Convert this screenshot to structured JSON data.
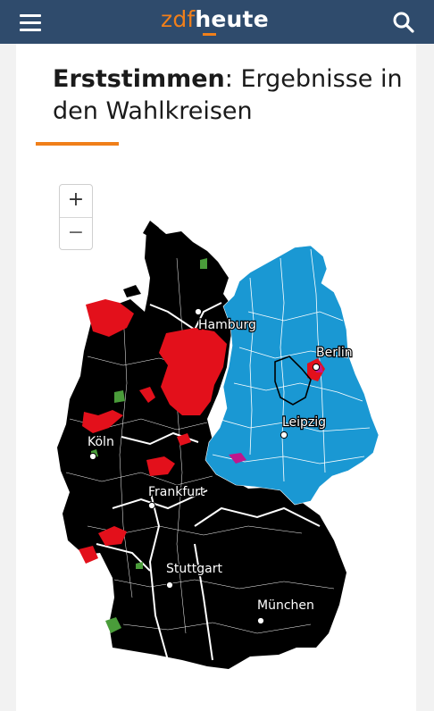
{
  "header": {
    "brand_part1": "zdf",
    "brand_part2": "heute",
    "menu_icon": "hamburger-menu-icon",
    "search_icon": "search-icon"
  },
  "article": {
    "title_bold": "Erststimmen",
    "title_rest": ": Ergebnisse in den Wahlkreisen"
  },
  "map": {
    "zoom_in_label": "+",
    "zoom_out_label": "−",
    "cities": [
      "Hamburg",
      "Berlin",
      "Leipzig",
      "Köln",
      "Frankfurt",
      "Stuttgart",
      "München"
    ],
    "colors": {
      "black_party": "#000000",
      "red_party": "#e3101b",
      "blue_party": "#1a98d3",
      "green_party": "#4a9c3a",
      "magenta_party": "#c0178c"
    }
  },
  "theme": {
    "header_bg": "#2f4b6c",
    "accent": "#f07f1a"
  }
}
